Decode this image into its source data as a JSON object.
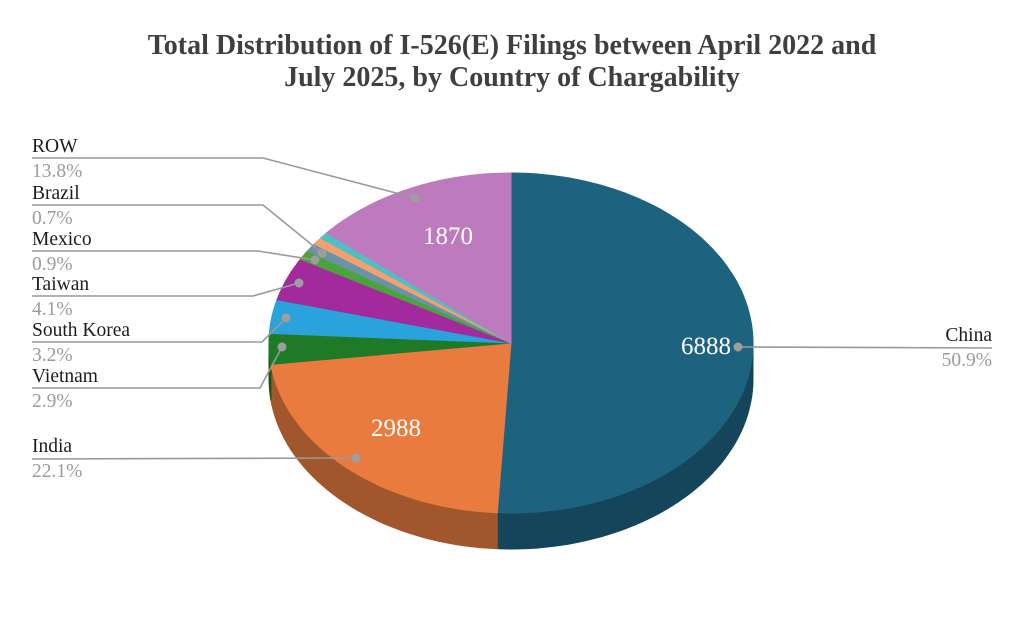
{
  "title": {
    "line1": "Total Distribution of I-526(E) Filings between April 2022 and",
    "line2": "July 2025, by Country of Chargability"
  },
  "chart_data": {
    "type": "pie",
    "style": "3d",
    "title": "Total Distribution of I-526(E) Filings between April 2022 and July 2025, by Country of Chargability",
    "legend_position": "outside-callout-labels",
    "background": "#ffffff",
    "slices": [
      {
        "label": "China",
        "value": 6888,
        "pct": "50.9%",
        "fraction": 0.509,
        "color": "#1d6380"
      },
      {
        "label": "India",
        "value": 2988,
        "pct": "22.1%",
        "fraction": 0.221,
        "color": "#e87b3d"
      },
      {
        "label": "Vietnam",
        "pct": "2.9%",
        "fraction": 0.029,
        "color": "#1f7a28"
      },
      {
        "label": "South Korea",
        "pct": "3.2%",
        "fraction": 0.032,
        "color": "#2aa2db"
      },
      {
        "label": "Taiwan",
        "pct": "4.1%",
        "fraction": 0.041,
        "color": "#a32a9d"
      },
      {
        "label": "Mexico",
        "pct": "0.9%",
        "fraction": 0.009,
        "color": "#4ba33c"
      },
      {
        "label": "",
        "pct": "",
        "fraction": 0.008,
        "color": "#6b93a8",
        "unlabeled": true
      },
      {
        "label": "Brazil",
        "pct": "0.7%",
        "fraction": 0.007,
        "color": "#f2a06e"
      },
      {
        "label": "",
        "pct": "",
        "fraction": 0.006,
        "color": "#4cc0c4",
        "unlabeled": true
      },
      {
        "label": "ROW",
        "value": 1870,
        "pct": "13.8%",
        "fraction": 0.138,
        "color": "#bd7bbe"
      }
    ],
    "colors": {
      "leader_line": "#999999",
      "leader_dot": "#9e9e9e",
      "label_text": "#1c1c1c",
      "pct_text": "#9b9b9b",
      "value_text": "#ffffff",
      "title_text": "#3f3f3f"
    }
  }
}
